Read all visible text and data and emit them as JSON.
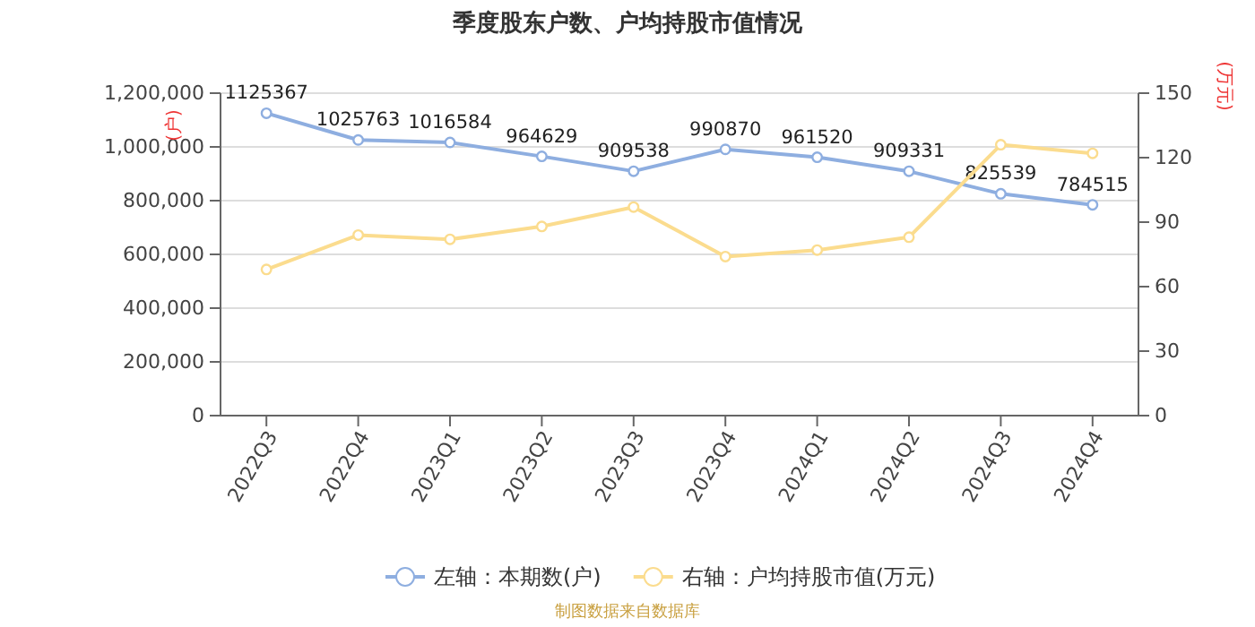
{
  "chart_data": {
    "type": "line",
    "title": "季度股东户数、户均持股市值情况",
    "ylabel": "(户)",
    "y2label": "(万元)",
    "categories": [
      "2022Q3",
      "2022Q4",
      "2023Q1",
      "2023Q2",
      "2023Q3",
      "2023Q4",
      "2024Q1",
      "2024Q2",
      "2024Q3",
      "2024Q4"
    ],
    "series": [
      {
        "name": "左轴：本期数(户)",
        "color": "#8eaee0",
        "values": [
          1125367,
          1025763,
          1016584,
          964629,
          909538,
          990870,
          961520,
          909331,
          825539,
          784515
        ],
        "value_labels": [
          "1125367",
          "1025763",
          "1016584",
          "964629",
          "909538",
          "990870",
          "961520",
          "909331",
          "825539",
          "784515"
        ]
      },
      {
        "name": "右轴：户均持股市值(万元)",
        "color": "#fbdc8e",
        "axis": "y2",
        "values": [
          68,
          84,
          82,
          88,
          97,
          74,
          77,
          83,
          126,
          122
        ]
      }
    ],
    "ylim": [
      0,
      1200000
    ],
    "yticks": [
      {
        "value": 0,
        "label": "0"
      },
      {
        "value": 200000,
        "label": "200,000"
      },
      {
        "value": 400000,
        "label": "400,000"
      },
      {
        "value": 600000,
        "label": "600,000"
      },
      {
        "value": 800000,
        "label": "800,000"
      },
      {
        "value": 1000000,
        "label": "1,000,000"
      },
      {
        "value": 1200000,
        "label": "1,200,000"
      }
    ],
    "y2lim": [
      0,
      150
    ],
    "y2ticks": [
      0,
      30,
      60,
      90,
      120,
      150
    ],
    "grid": "y",
    "legend": "bottom",
    "marker": "circle",
    "line_style": "solid",
    "annotations": [
      "制图数据来自数据库"
    ]
  }
}
